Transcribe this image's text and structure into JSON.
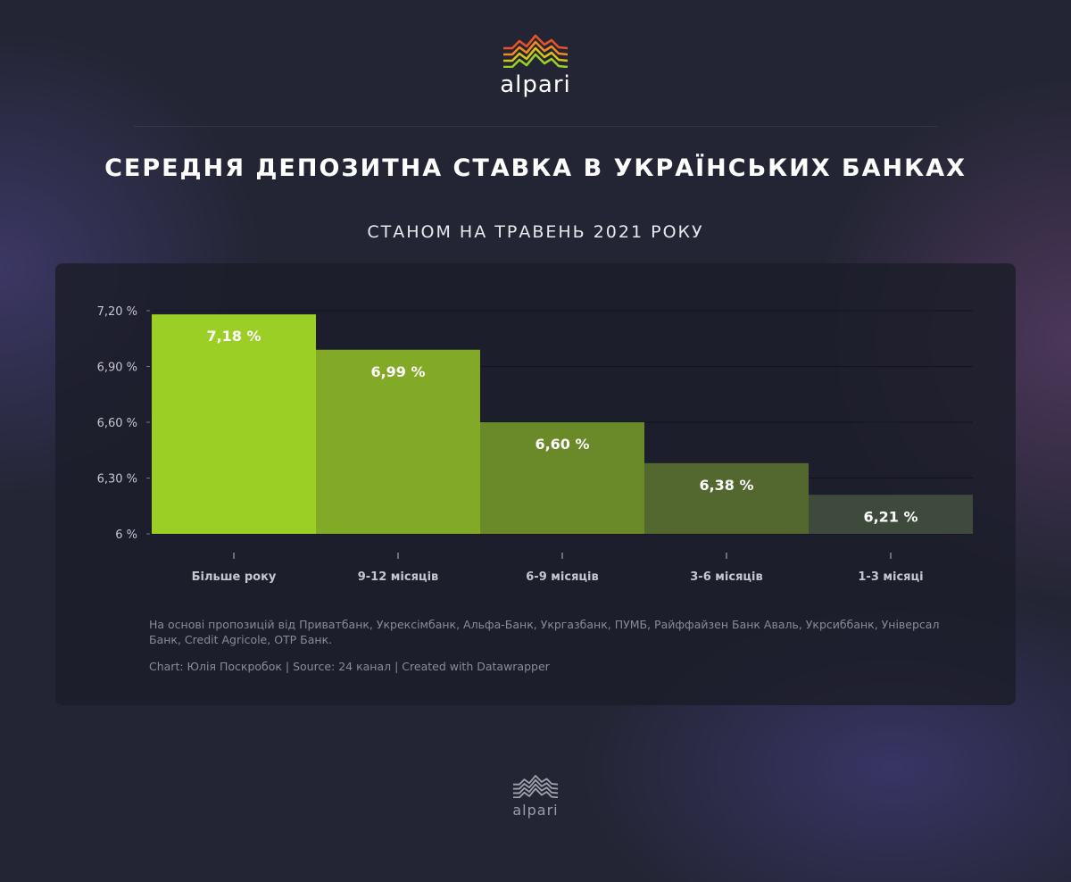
{
  "brand": {
    "name": "alpari",
    "wave_colors": [
      "#e8522a",
      "#f08a1e",
      "#d8c21a",
      "#9ccf25"
    ]
  },
  "header": {
    "title": "СЕРЕДНЯ ДЕПОЗИТНА СТАВКА В УКРАЇНСЬКИХ БАНКАХ",
    "subtitle": "СТАНОМ НА ТРАВЕНЬ 2021 РОКУ"
  },
  "chart_data": {
    "type": "bar",
    "title": "СЕРЕДНЯ ДЕПОЗИТНА СТАВКА В УКРАЇНСЬКИХ БАНКАХ",
    "subtitle": "СТАНОМ НА ТРАВЕНЬ 2021 РОКУ",
    "categories": [
      "Більше року",
      "9-12 місяців",
      "6-9 місяців",
      "3-6 місяців",
      "1-3 місяці"
    ],
    "values": [
      7.18,
      6.99,
      6.6,
      6.38,
      6.21
    ],
    "data_labels": [
      "7,18 %",
      "6,99 %",
      "6,60 %",
      "6,38 %",
      "6,21 %"
    ],
    "colors": [
      "#9ccf25",
      "#82aa27",
      "#6a8a2a",
      "#53682e",
      "#3e4a3c"
    ],
    "ylim": [
      6,
      7.2
    ],
    "yticks": [
      6,
      6.3,
      6.6,
      6.9,
      7.2
    ],
    "ytick_labels": [
      "6 %",
      "6,30 %",
      "6,60 %",
      "6,90 %",
      "7,20 %"
    ],
    "xlabel": "",
    "ylabel": "",
    "grid": true
  },
  "footer": {
    "notes": "На основі пропозицій від Приватбанк, Укрексімбанк, Альфа-Банк, Укргазбанк, ПУМБ, Райффайзен Банк Аваль, Укрсиббанк, Універсал Банк, Credit Agricole, OTP Банк.",
    "credit": "Chart: Юлія Поскробок | Source: 24 канал | Created with Datawrapper"
  }
}
